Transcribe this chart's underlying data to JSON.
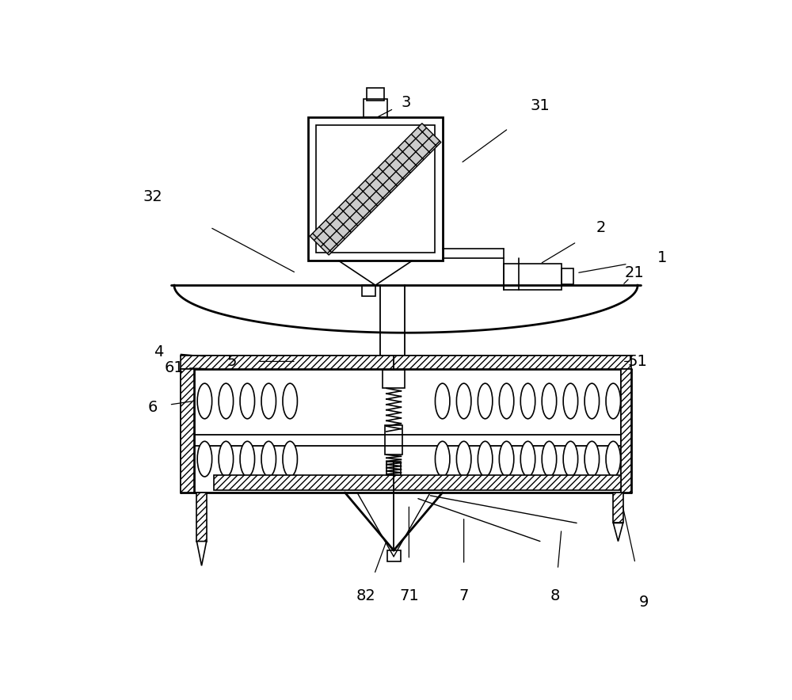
{
  "bg_color": "#ffffff",
  "line_color": "#000000",
  "fig_width": 10.0,
  "fig_height": 8.84
}
